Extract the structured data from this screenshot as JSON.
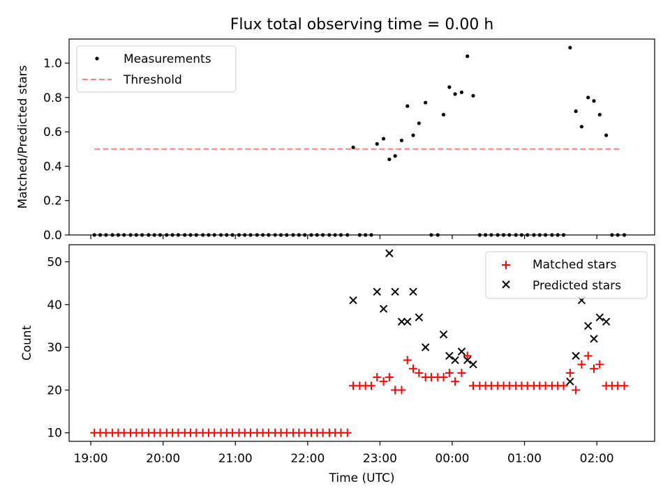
{
  "title": "Flux total observing time = 0.00 h",
  "chart_data": [
    {
      "type": "scatter",
      "xlabel": "",
      "ylabel": "Matched/Predicted stars",
      "x_unit": "hours after 19:00 UTC",
      "xlim": [
        -0.3,
        7.8
      ],
      "ylim": [
        0,
        1.14
      ],
      "yticks": [
        0.0,
        0.2,
        0.4,
        0.6,
        0.8,
        1.0
      ],
      "ytick_labels": [
        "0.0",
        "0.2",
        "0.4",
        "0.6",
        "0.8",
        "1.0"
      ],
      "legend": {
        "position": "upper left",
        "entries": [
          "Measurements",
          "Threshold"
        ]
      },
      "threshold": {
        "name": "Threshold",
        "y": 0.5,
        "x": [
          0.05,
          7.35
        ],
        "color": "#ff7f7f",
        "style": "dashed"
      },
      "series": [
        {
          "name": "Measurements",
          "color": "#000000",
          "marker": "dot",
          "points": [
            [
              0.05,
              0
            ],
            [
              0.13,
              0
            ],
            [
              0.21,
              0
            ],
            [
              0.3,
              0
            ],
            [
              0.38,
              0
            ],
            [
              0.46,
              0
            ],
            [
              0.55,
              0
            ],
            [
              0.63,
              0
            ],
            [
              0.71,
              0
            ],
            [
              0.8,
              0
            ],
            [
              0.88,
              0
            ],
            [
              0.96,
              0
            ],
            [
              1.05,
              0
            ],
            [
              1.13,
              0
            ],
            [
              1.21,
              0
            ],
            [
              1.3,
              0
            ],
            [
              1.38,
              0
            ],
            [
              1.46,
              0
            ],
            [
              1.55,
              0
            ],
            [
              1.63,
              0
            ],
            [
              1.71,
              0
            ],
            [
              1.8,
              0
            ],
            [
              1.88,
              0
            ],
            [
              1.96,
              0
            ],
            [
              2.05,
              0
            ],
            [
              2.13,
              0
            ],
            [
              2.21,
              0
            ],
            [
              2.3,
              0
            ],
            [
              2.38,
              0
            ],
            [
              2.46,
              0
            ],
            [
              2.55,
              0
            ],
            [
              2.63,
              0
            ],
            [
              2.71,
              0
            ],
            [
              2.8,
              0
            ],
            [
              2.88,
              0
            ],
            [
              2.96,
              0
            ],
            [
              3.05,
              0
            ],
            [
              3.13,
              0
            ],
            [
              3.21,
              0
            ],
            [
              3.3,
              0
            ],
            [
              3.38,
              0
            ],
            [
              3.46,
              0
            ],
            [
              3.55,
              0
            ],
            [
              3.63,
              0.51
            ],
            [
              3.72,
              0
            ],
            [
              3.8,
              0
            ],
            [
              3.88,
              0
            ],
            [
              3.96,
              0.53
            ],
            [
              4.05,
              0.56
            ],
            [
              4.13,
              0.44
            ],
            [
              4.21,
              0.46
            ],
            [
              4.3,
              0.55
            ],
            [
              4.38,
              0.75
            ],
            [
              4.46,
              0.58
            ],
            [
              4.54,
              0.65
            ],
            [
              4.63,
              0.77
            ],
            [
              4.71,
              0
            ],
            [
              4.8,
              0
            ],
            [
              4.88,
              0.7
            ],
            [
              4.96,
              0.86
            ],
            [
              5.04,
              0.82
            ],
            [
              5.13,
              0.83
            ],
            [
              5.21,
              1.04
            ],
            [
              5.29,
              0.81
            ],
            [
              5.38,
              0
            ],
            [
              5.46,
              0
            ],
            [
              5.54,
              0
            ],
            [
              5.63,
              0
            ],
            [
              5.71,
              0
            ],
            [
              5.79,
              0
            ],
            [
              5.88,
              0
            ],
            [
              5.96,
              0
            ],
            [
              6.04,
              0
            ],
            [
              6.13,
              0
            ],
            [
              6.21,
              0
            ],
            [
              6.29,
              0
            ],
            [
              6.38,
              0
            ],
            [
              6.46,
              0
            ],
            [
              6.54,
              0
            ],
            [
              6.63,
              1.09
            ],
            [
              6.71,
              0.72
            ],
            [
              6.79,
              0.63
            ],
            [
              6.88,
              0.8
            ],
            [
              6.96,
              0.78
            ],
            [
              7.04,
              0.7
            ],
            [
              7.13,
              0.58
            ],
            [
              7.21,
              0
            ],
            [
              7.29,
              0
            ],
            [
              7.38,
              0
            ]
          ]
        }
      ]
    },
    {
      "type": "scatter",
      "xlabel": "Time (UTC)",
      "ylabel": "Count",
      "x_unit": "hours after 19:00 UTC",
      "xlim": [
        -0.3,
        7.8
      ],
      "ylim": [
        8,
        54
      ],
      "xticks": [
        0,
        1,
        2,
        3,
        4,
        5,
        6,
        7
      ],
      "xtick_labels": [
        "19:00",
        "20:00",
        "21:00",
        "22:00",
        "23:00",
        "00:00",
        "01:00",
        "02:00"
      ],
      "yticks": [
        10,
        20,
        30,
        40,
        50
      ],
      "ytick_labels": [
        "10",
        "20",
        "30",
        "40",
        "50"
      ],
      "legend": {
        "position": "upper right",
        "entries": [
          "Matched stars",
          "Predicted stars"
        ]
      },
      "series": [
        {
          "name": "Matched stars",
          "color": "#ff0000",
          "marker": "plus",
          "points": [
            [
              0.05,
              10
            ],
            [
              0.13,
              10
            ],
            [
              0.21,
              10
            ],
            [
              0.3,
              10
            ],
            [
              0.38,
              10
            ],
            [
              0.46,
              10
            ],
            [
              0.55,
              10
            ],
            [
              0.63,
              10
            ],
            [
              0.71,
              10
            ],
            [
              0.8,
              10
            ],
            [
              0.88,
              10
            ],
            [
              0.96,
              10
            ],
            [
              1.05,
              10
            ],
            [
              1.13,
              10
            ],
            [
              1.21,
              10
            ],
            [
              1.3,
              10
            ],
            [
              1.38,
              10
            ],
            [
              1.46,
              10
            ],
            [
              1.55,
              10
            ],
            [
              1.63,
              10
            ],
            [
              1.71,
              10
            ],
            [
              1.8,
              10
            ],
            [
              1.88,
              10
            ],
            [
              1.96,
              10
            ],
            [
              2.05,
              10
            ],
            [
              2.13,
              10
            ],
            [
              2.21,
              10
            ],
            [
              2.3,
              10
            ],
            [
              2.38,
              10
            ],
            [
              2.46,
              10
            ],
            [
              2.55,
              10
            ],
            [
              2.63,
              10
            ],
            [
              2.71,
              10
            ],
            [
              2.8,
              10
            ],
            [
              2.88,
              10
            ],
            [
              2.96,
              10
            ],
            [
              3.05,
              10
            ],
            [
              3.13,
              10
            ],
            [
              3.21,
              10
            ],
            [
              3.3,
              10
            ],
            [
              3.38,
              10
            ],
            [
              3.46,
              10
            ],
            [
              3.55,
              10
            ],
            [
              3.63,
              21
            ],
            [
              3.72,
              21
            ],
            [
              3.8,
              21
            ],
            [
              3.88,
              21
            ],
            [
              3.96,
              23
            ],
            [
              4.05,
              22
            ],
            [
              4.13,
              23
            ],
            [
              4.21,
              20
            ],
            [
              4.3,
              20
            ],
            [
              4.38,
              27
            ],
            [
              4.46,
              25
            ],
            [
              4.54,
              24
            ],
            [
              4.63,
              23
            ],
            [
              4.71,
              23
            ],
            [
              4.8,
              23
            ],
            [
              4.88,
              23
            ],
            [
              4.96,
              24
            ],
            [
              5.04,
              22
            ],
            [
              5.13,
              24
            ],
            [
              5.21,
              28
            ],
            [
              5.29,
              21
            ],
            [
              5.38,
              21
            ],
            [
              5.46,
              21
            ],
            [
              5.54,
              21
            ],
            [
              5.63,
              21
            ],
            [
              5.71,
              21
            ],
            [
              5.79,
              21
            ],
            [
              5.88,
              21
            ],
            [
              5.96,
              21
            ],
            [
              6.04,
              21
            ],
            [
              6.13,
              21
            ],
            [
              6.21,
              21
            ],
            [
              6.29,
              21
            ],
            [
              6.38,
              21
            ],
            [
              6.46,
              21
            ],
            [
              6.54,
              21
            ],
            [
              6.63,
              24
            ],
            [
              6.71,
              20
            ],
            [
              6.79,
              26
            ],
            [
              6.88,
              28
            ],
            [
              6.96,
              25
            ],
            [
              7.04,
              26
            ],
            [
              7.13,
              21
            ],
            [
              7.21,
              21
            ],
            [
              7.29,
              21
            ],
            [
              7.38,
              21
            ]
          ]
        },
        {
          "name": "Predicted stars",
          "color": "#000000",
          "marker": "x",
          "points": [
            [
              3.63,
              41
            ],
            [
              3.96,
              43
            ],
            [
              4.05,
              39
            ],
            [
              4.13,
              52
            ],
            [
              4.21,
              43
            ],
            [
              4.3,
              36
            ],
            [
              4.38,
              36
            ],
            [
              4.46,
              43
            ],
            [
              4.54,
              37
            ],
            [
              4.63,
              30
            ],
            [
              4.88,
              33
            ],
            [
              4.96,
              28
            ],
            [
              5.04,
              27
            ],
            [
              5.13,
              29
            ],
            [
              5.21,
              27
            ],
            [
              5.29,
              26
            ],
            [
              6.63,
              22
            ],
            [
              6.71,
              28
            ],
            [
              6.79,
              41
            ],
            [
              6.88,
              35
            ],
            [
              6.96,
              32
            ],
            [
              7.04,
              37
            ],
            [
              7.13,
              36
            ]
          ]
        }
      ]
    }
  ]
}
